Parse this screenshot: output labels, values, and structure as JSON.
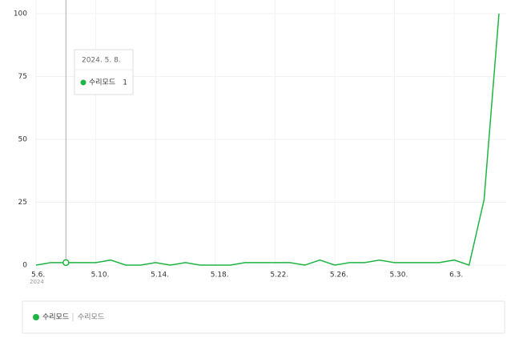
{
  "chart_data": {
    "type": "line",
    "categories": [
      "5.6.",
      null,
      null,
      null,
      "5.10.",
      null,
      null,
      null,
      "5.14.",
      null,
      null,
      null,
      "5.18.",
      null,
      null,
      null,
      "5.22.",
      null,
      null,
      null,
      "5.26.",
      null,
      null,
      null,
      "5.30.",
      null,
      null,
      null,
      "6.3.",
      null,
      null,
      null
    ],
    "year_label": "2024",
    "series": [
      {
        "name": "수리모드",
        "color": "#1eb543",
        "values": [
          0,
          1,
          1,
          1,
          1,
          2,
          0,
          0,
          1,
          0,
          1,
          0,
          0,
          0,
          1,
          1,
          1,
          1,
          0,
          2,
          0,
          1,
          1,
          2,
          1,
          1,
          1,
          1,
          2,
          0,
          26,
          100
        ]
      }
    ],
    "ylim": [
      0,
      100
    ],
    "yticks": [
      0,
      25,
      50,
      75,
      100
    ],
    "grid": true,
    "tooltip": {
      "date": "2024. 5. 8.",
      "index": 2
    },
    "legend_keywords": "수리모드"
  }
}
